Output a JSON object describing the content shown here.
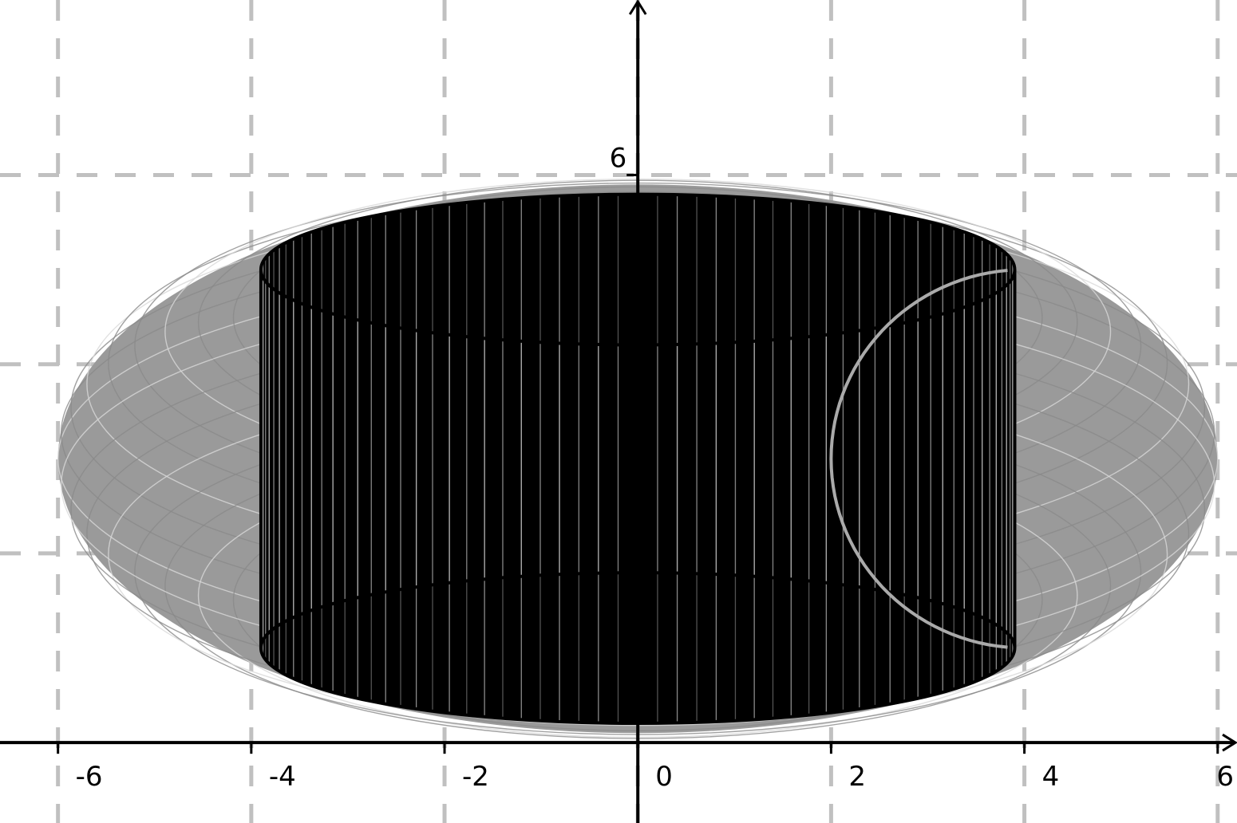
{
  "chart_data": {
    "type": "line",
    "title": "",
    "xlabel": "",
    "ylabel": "",
    "xlim": [
      -6.6,
      6.2
    ],
    "ylim": [
      -0.85,
      7.85
    ],
    "grid": true,
    "grid_style": "dashed",
    "x_ticks": [
      {
        "value": -6,
        "label": "-6"
      },
      {
        "value": -4,
        "label": "-4"
      },
      {
        "value": -2,
        "label": "-2"
      },
      {
        "value": 0,
        "label": "0"
      },
      {
        "value": 2,
        "label": "2"
      },
      {
        "value": 4,
        "label": "4"
      },
      {
        "value": 6,
        "label": "6"
      }
    ],
    "y_ticks": [
      {
        "value": 6,
        "label": "6"
      }
    ],
    "x_gridlines": [
      -6,
      -4,
      -2,
      0,
      2,
      4,
      6
    ],
    "y_gridlines": [
      2,
      4,
      6
    ],
    "torus": {
      "major_radius": 4,
      "minor_radius": 2,
      "center_y": 3,
      "outer_radius": 6,
      "color": "#9a9a9a"
    },
    "cylinder": {
      "radius": 3.9,
      "y_bottom": 1,
      "y_top": 5,
      "ellipse_ratio": 0.2,
      "n_lines": 120,
      "color": "#000000"
    },
    "arc": {
      "center_x": 4,
      "center_y": 3,
      "radius": 2,
      "start_deg": 95,
      "end_deg": 265,
      "color": "#aaaaaa"
    },
    "colors": {
      "grid": "#c0c0c0",
      "axis": "#000000"
    }
  }
}
